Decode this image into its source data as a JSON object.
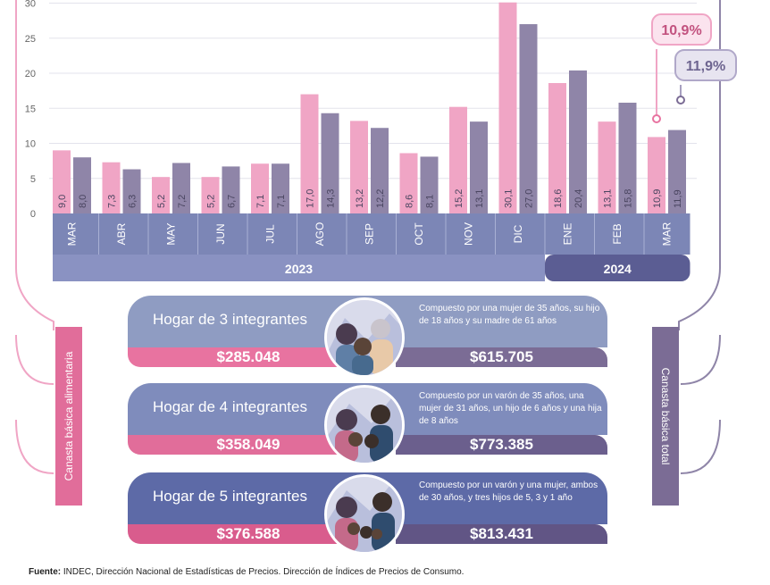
{
  "chart_data": {
    "type": "bar",
    "categories": [
      "MAR",
      "ABR",
      "MAY",
      "JUN",
      "JUL",
      "AGO",
      "SEP",
      "OCT",
      "NOV",
      "DIC",
      "ENE",
      "FEB",
      "MAR"
    ],
    "years": [
      {
        "label": "2023",
        "count": 10
      },
      {
        "label": "2024",
        "count": 3
      }
    ],
    "series": [
      {
        "values": [
          9.0,
          7.3,
          5.2,
          5.2,
          7.1,
          17.0,
          13.2,
          8.6,
          15.2,
          30.1,
          18.6,
          13.1,
          10.9
        ],
        "labels": [
          "9,0",
          "7,3",
          "5,2",
          "5,2",
          "7,1",
          "17,0",
          "13,2",
          "8,6",
          "15,2",
          "30,1",
          "18,6",
          "13,1",
          "10,9"
        ],
        "color": "#f0a5c5"
      },
      {
        "values": [
          8.0,
          6.3,
          7.2,
          6.7,
          7.1,
          14.3,
          12.2,
          8.1,
          13.1,
          27.0,
          20.4,
          15.8,
          11.9
        ],
        "labels": [
          "8,0",
          "6,3",
          "7,2",
          "6,7",
          "7,1",
          "14,3",
          "12,2",
          "8,1",
          "13,1",
          "27,0",
          "20,4",
          "15,8",
          "11,9"
        ],
        "color": "#8f85a8"
      }
    ],
    "yticks": [
      0,
      5,
      10,
      15,
      20,
      25,
      30
    ],
    "ylim": [
      0,
      31
    ],
    "callouts": [
      {
        "text": "10,9%",
        "color": "#c2527f"
      },
      {
        "text": "11,9%",
        "color": "#6e6590"
      }
    ],
    "grid": true
  },
  "cards": [
    {
      "title": "Hogar de 3 integrantes",
      "desc": "Compuesto por una mujer de 35 años, su hijo de 18 años y su madre de 61 años",
      "cba": "$285.048",
      "cbt": "$615.705"
    },
    {
      "title": "Hogar de 4 integrantes",
      "desc": "Compuesto por un varón de 35 años, una mujer de 31 años, un hijo de 6 años y una hija de 8 años",
      "cba": "$358.049",
      "cbt": "$773.385"
    },
    {
      "title": "Hogar de 5 integrantes",
      "desc": "Compuesto por un varón y una mujer, ambos de 30 años, y tres hijos de 5, 3 y 1 año",
      "cba": "$376.588",
      "cbt": "$813.431"
    }
  ],
  "side_labels": {
    "left": "Canasta básica alimentaria",
    "right": "Canasta básica total"
  },
  "source": {
    "label": "Fuente:",
    "text": " INDEC, Dirección Nacional de Estadísticas de Precios. Dirección de Índices de Precios de Consumo."
  },
  "colors": {
    "pink": "#f0a5c5",
    "purple": "#8f85a8",
    "axis_band": "#7c86b6",
    "year_2023": "#8a92c2",
    "year_2024": "#5b5d93",
    "cba_bar": "#e16d9a",
    "cbt_bar": "#7b6c95"
  }
}
